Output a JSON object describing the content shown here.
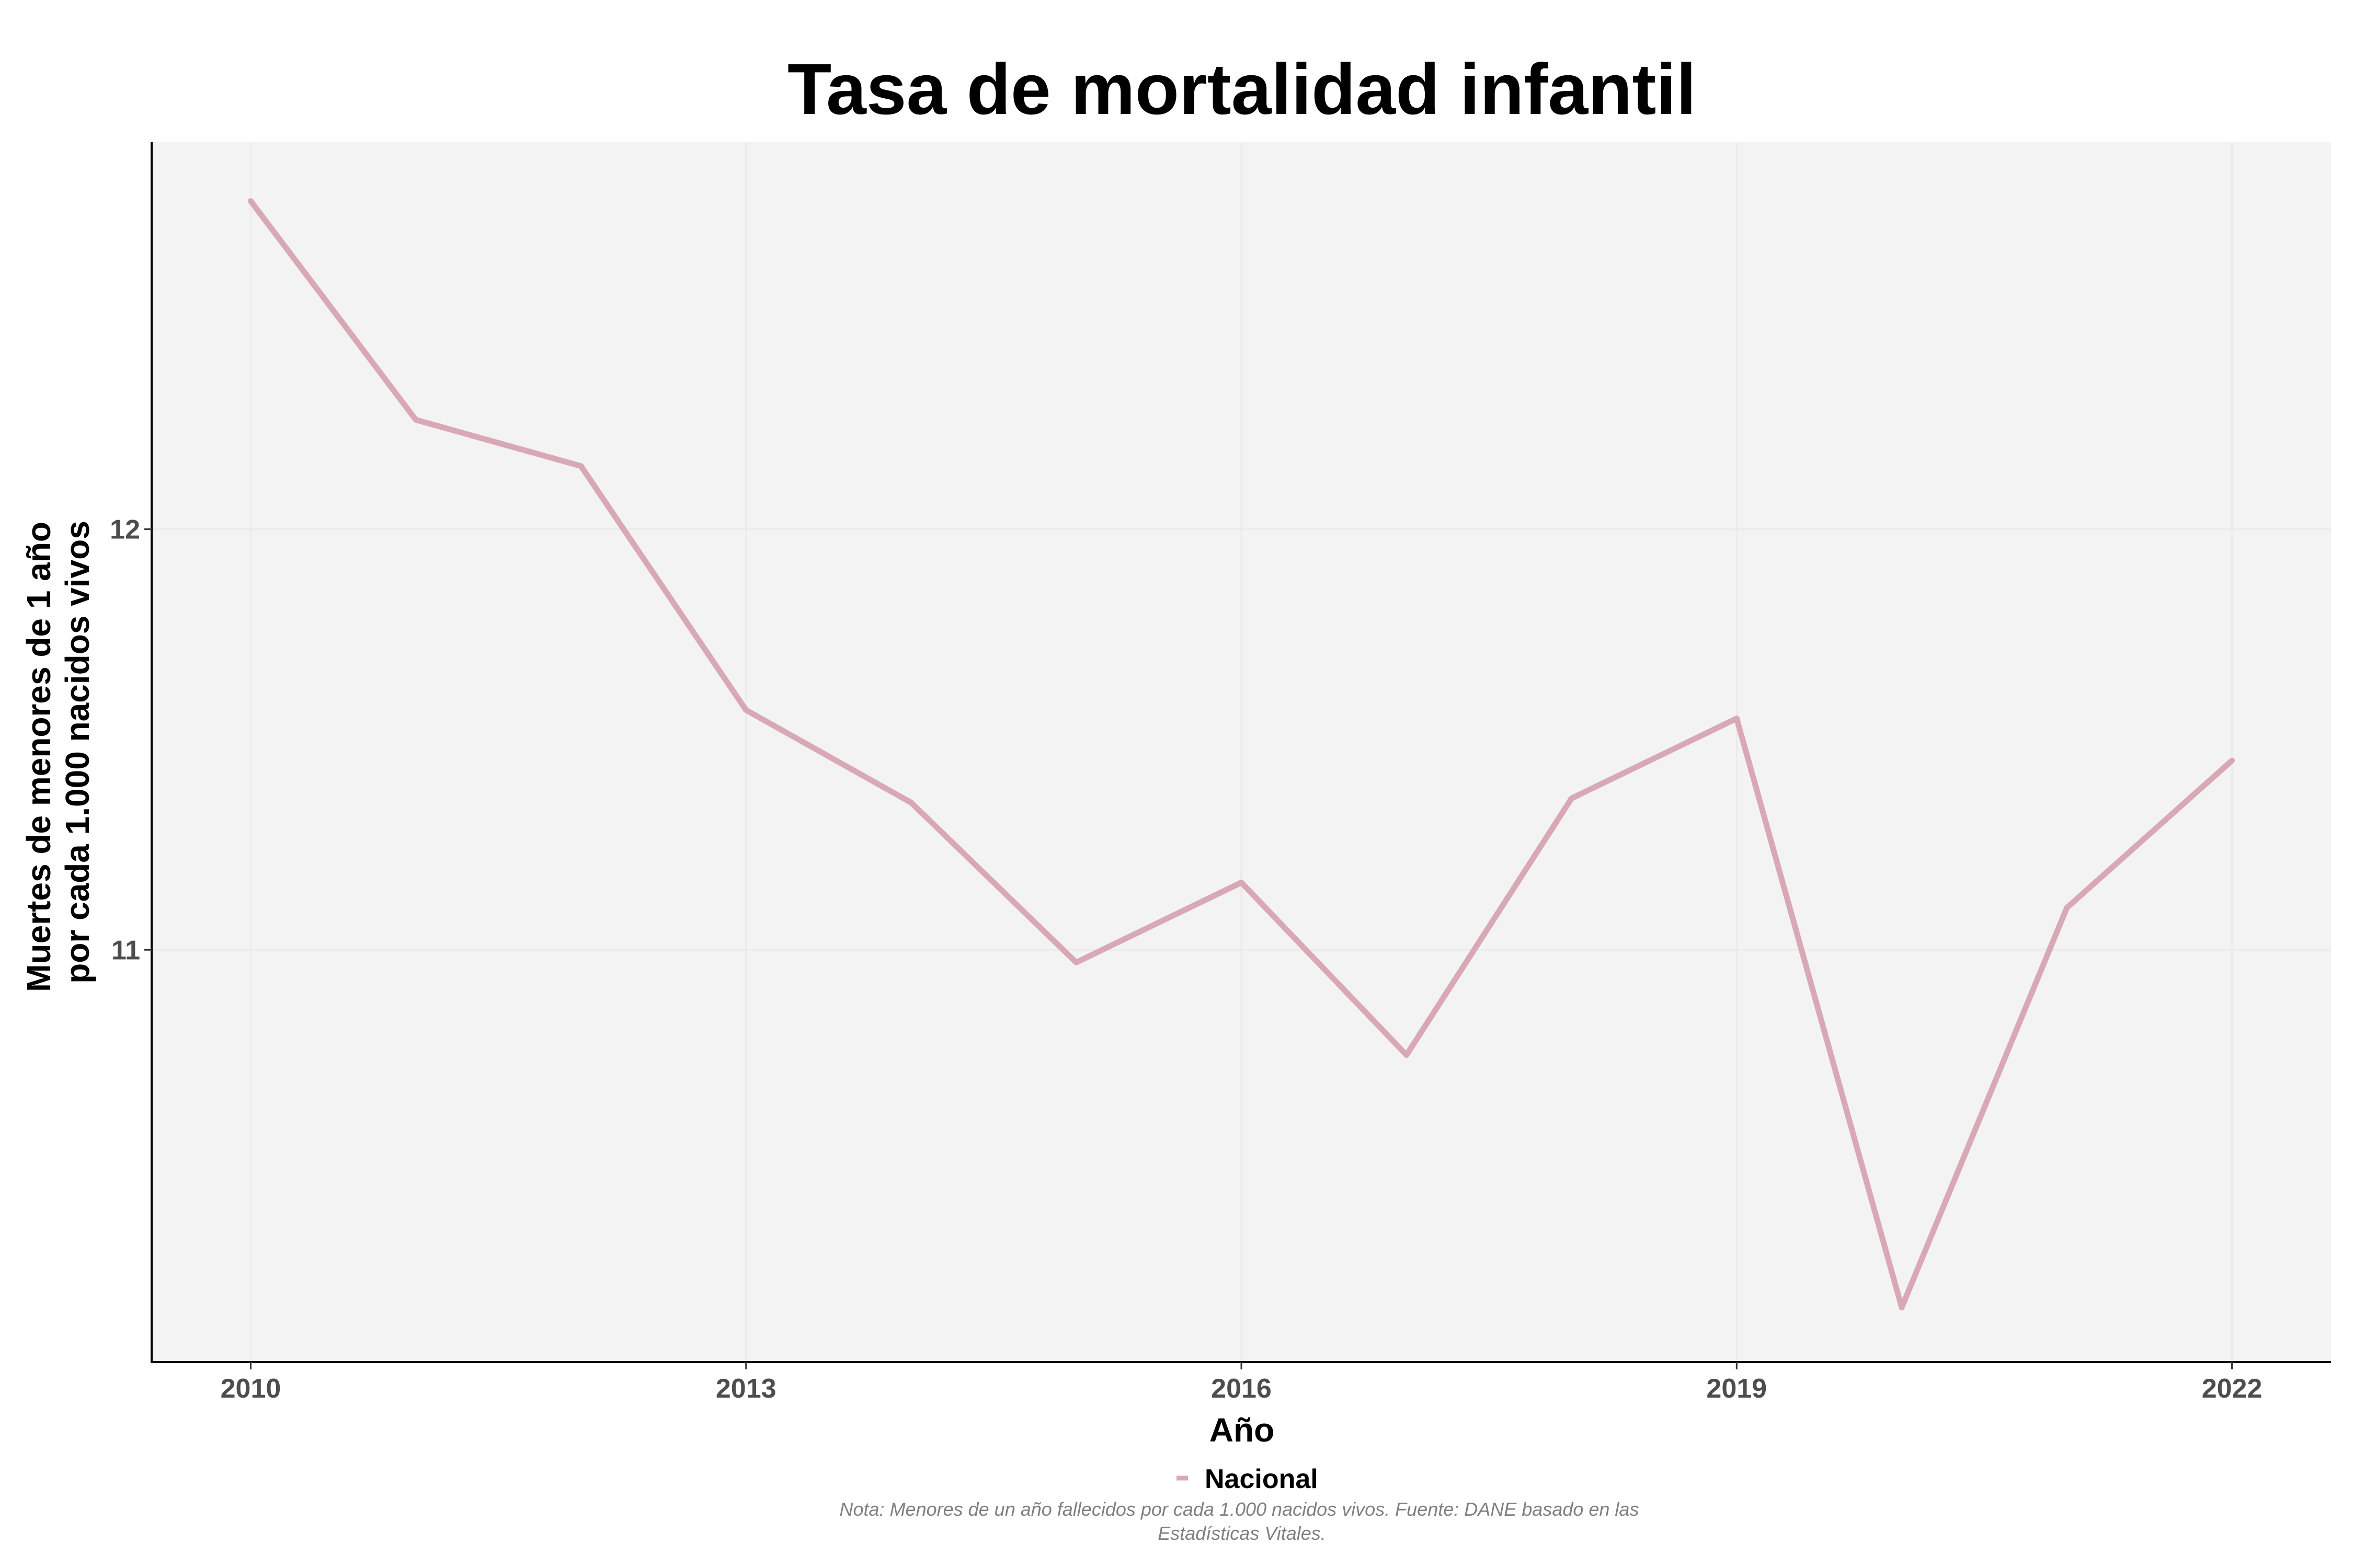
{
  "chart_data": {
    "type": "line",
    "title": "Tasa de mortalidad infantil",
    "xlabel": "Año",
    "ylabel_lines": [
      "Muertes de menores de 1 año",
      "por cada 1.000 nacidos vivos"
    ],
    "x": [
      2010,
      2011,
      2012,
      2013,
      2014,
      2015,
      2016,
      2017,
      2018,
      2019,
      2020,
      2021,
      2022
    ],
    "series": [
      {
        "name": "Nacional",
        "color": "#d8a9b5",
        "values": [
          12.78,
          12.26,
          12.15,
          11.57,
          11.35,
          10.97,
          11.16,
          10.75,
          11.36,
          11.55,
          10.15,
          11.1,
          11.45
        ]
      }
    ],
    "xticks": [
      2010,
      2013,
      2016,
      2019,
      2022
    ],
    "xtick_labels": [
      "2010",
      "2013",
      "2016",
      "2019",
      "2022"
    ],
    "yticks": [
      11,
      12
    ],
    "ytick_labels": [
      "11",
      "12"
    ],
    "xlim": [
      2009.4,
      2022.6
    ],
    "ylim": [
      10.02,
      12.92
    ],
    "grid": true,
    "legend_position": "bottom",
    "caption_lines": [
      "Nota: Menores de un año fallecidos por cada 1.000 nacidos vivos. Fuente: DANE basado en las",
      "Estadísticas Vitales."
    ],
    "colors": {
      "panel_background": "#f3f3f3",
      "grid": "#ebebeb",
      "axis_line": "#000000"
    }
  }
}
